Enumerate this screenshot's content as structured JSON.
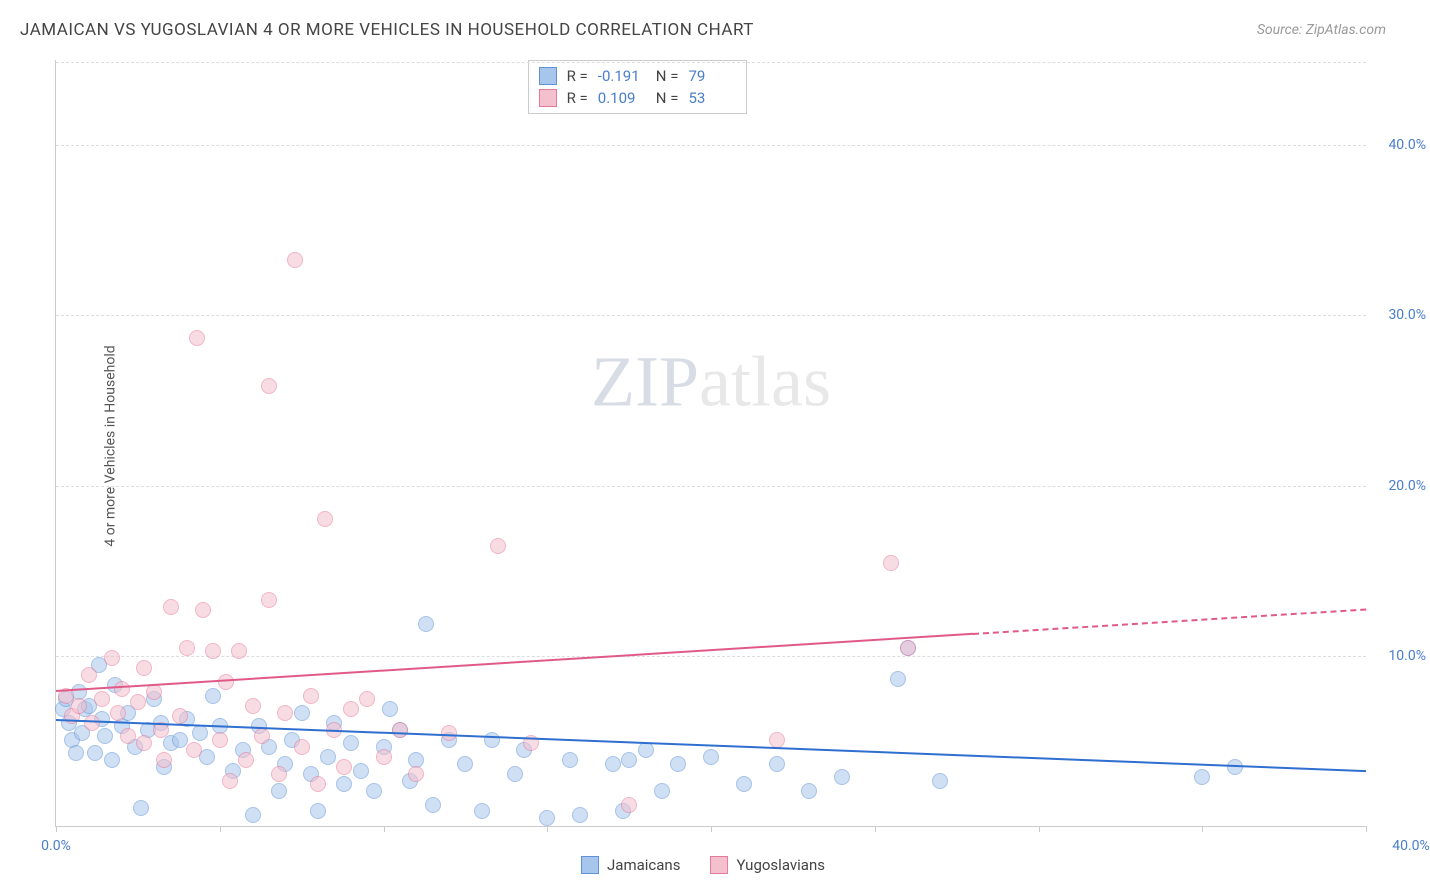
{
  "title": "JAMAICAN VS YUGOSLAVIAN 4 OR MORE VEHICLES IN HOUSEHOLD CORRELATION CHART",
  "source": "Source: ZipAtlas.com",
  "y_axis_label": "4 or more Vehicles in Household",
  "watermark_a": "ZIP",
  "watermark_b": "atlas",
  "chart": {
    "type": "scatter",
    "xlim": [
      0,
      40
    ],
    "ylim": [
      0,
      45
    ],
    "x_ticks": [
      0,
      5,
      10,
      15,
      20,
      25,
      30,
      35,
      40
    ],
    "x_tick_labels": {
      "0": "0.0%",
      "40": "40.0%"
    },
    "y_ticks": [
      10,
      20,
      30,
      40
    ],
    "y_tick_labels": {
      "10": "10.0%",
      "20": "20.0%",
      "30": "30.0%",
      "40": "40.0%"
    },
    "grid_color": "#dddddd",
    "axis_color": "#cccccc",
    "tick_label_color": "#4a7ecc",
    "background_color": "#ffffff",
    "point_radius": 8,
    "point_opacity": 0.55,
    "series": [
      {
        "name": "Jamaicans",
        "color_fill": "#a8c6ec",
        "color_stroke": "#5e93d6",
        "R": "-0.191",
        "N": "79",
        "trend": {
          "x1": 0,
          "y1": 6.3,
          "x2": 40,
          "y2": 3.3,
          "color": "#2f6fd0",
          "dash_after_x": 40
        },
        "points": [
          [
            0.2,
            7.8
          ],
          [
            0.5,
            6.0
          ],
          [
            0.3,
            8.4
          ],
          [
            0.6,
            5.2
          ],
          [
            0.4,
            7.0
          ],
          [
            0.9,
            7.8
          ],
          [
            0.7,
            8.8
          ],
          [
            0.8,
            6.4
          ],
          [
            1.0,
            8.0
          ],
          [
            1.2,
            5.2
          ],
          [
            1.3,
            10.4
          ],
          [
            1.5,
            6.2
          ],
          [
            1.4,
            7.2
          ],
          [
            1.8,
            9.2
          ],
          [
            1.7,
            4.8
          ],
          [
            2.0,
            6.8
          ],
          [
            2.2,
            7.6
          ],
          [
            2.4,
            5.6
          ],
          [
            2.6,
            2.0
          ],
          [
            2.8,
            6.6
          ],
          [
            3.0,
            8.4
          ],
          [
            3.2,
            7.0
          ],
          [
            3.5,
            5.8
          ],
          [
            3.3,
            4.4
          ],
          [
            3.8,
            6.0
          ],
          [
            4.0,
            7.2
          ],
          [
            4.4,
            6.4
          ],
          [
            4.6,
            5.0
          ],
          [
            4.8,
            8.6
          ],
          [
            5.0,
            6.8
          ],
          [
            5.4,
            4.2
          ],
          [
            5.7,
            5.4
          ],
          [
            6.0,
            1.6
          ],
          [
            6.2,
            6.8
          ],
          [
            6.5,
            5.6
          ],
          [
            6.8,
            3.0
          ],
          [
            7.0,
            4.6
          ],
          [
            7.2,
            6.0
          ],
          [
            7.5,
            7.6
          ],
          [
            7.8,
            4.0
          ],
          [
            8.0,
            1.8
          ],
          [
            8.3,
            5.0
          ],
          [
            8.5,
            7.0
          ],
          [
            8.8,
            3.4
          ],
          [
            9.0,
            5.8
          ],
          [
            9.3,
            4.2
          ],
          [
            9.7,
            3.0
          ],
          [
            10.0,
            5.6
          ],
          [
            10.2,
            7.8
          ],
          [
            10.5,
            6.6
          ],
          [
            10.8,
            3.6
          ],
          [
            11.0,
            4.8
          ],
          [
            11.3,
            12.8
          ],
          [
            11.5,
            2.2
          ],
          [
            12.0,
            6.0
          ],
          [
            12.5,
            4.6
          ],
          [
            13.0,
            1.8
          ],
          [
            13.3,
            6.0
          ],
          [
            14.0,
            4.0
          ],
          [
            14.3,
            5.4
          ],
          [
            15.0,
            1.4
          ],
          [
            15.7,
            4.8
          ],
          [
            16.0,
            1.6
          ],
          [
            17.0,
            4.6
          ],
          [
            17.3,
            1.8
          ],
          [
            17.5,
            4.8
          ],
          [
            18.0,
            5.4
          ],
          [
            18.5,
            3.0
          ],
          [
            19.0,
            4.6
          ],
          [
            20.0,
            5.0
          ],
          [
            21.0,
            3.4
          ],
          [
            22.0,
            4.6
          ],
          [
            23.0,
            3.0
          ],
          [
            24.0,
            3.8
          ],
          [
            25.7,
            9.6
          ],
          [
            26.0,
            11.4
          ],
          [
            27.0,
            3.6
          ],
          [
            35.0,
            3.8
          ],
          [
            36.0,
            4.4
          ]
        ]
      },
      {
        "name": "Yugoslavians",
        "color_fill": "#f4c0cd",
        "color_stroke": "#e77a9a",
        "R": "0.109",
        "N": "53",
        "trend": {
          "x1": 0,
          "y1": 8.0,
          "x2": 40,
          "y2": 12.8,
          "color": "#e15a87",
          "dash_after_x": 28
        },
        "points": [
          [
            0.3,
            8.6
          ],
          [
            0.5,
            7.4
          ],
          [
            0.7,
            8.0
          ],
          [
            1.0,
            9.8
          ],
          [
            1.1,
            7.0
          ],
          [
            1.4,
            8.4
          ],
          [
            1.7,
            10.8
          ],
          [
            1.9,
            7.6
          ],
          [
            2.0,
            9.0
          ],
          [
            2.2,
            6.2
          ],
          [
            2.5,
            8.2
          ],
          [
            2.7,
            5.8
          ],
          [
            2.7,
            10.2
          ],
          [
            3.0,
            8.8
          ],
          [
            3.2,
            6.6
          ],
          [
            3.3,
            4.8
          ],
          [
            3.5,
            13.8
          ],
          [
            3.8,
            7.4
          ],
          [
            4.0,
            11.4
          ],
          [
            4.2,
            5.4
          ],
          [
            4.5,
            13.6
          ],
          [
            4.3,
            29.6
          ],
          [
            4.8,
            11.2
          ],
          [
            5.0,
            6.0
          ],
          [
            5.2,
            9.4
          ],
          [
            5.3,
            3.6
          ],
          [
            5.6,
            11.2
          ],
          [
            5.8,
            4.8
          ],
          [
            6.0,
            8.0
          ],
          [
            6.3,
            6.2
          ],
          [
            6.5,
            14.2
          ],
          [
            6.5,
            26.8
          ],
          [
            6.8,
            4.0
          ],
          [
            7.0,
            7.6
          ],
          [
            7.3,
            34.2
          ],
          [
            7.5,
            5.6
          ],
          [
            7.8,
            8.6
          ],
          [
            8.0,
            3.4
          ],
          [
            8.2,
            19.0
          ],
          [
            8.5,
            6.6
          ],
          [
            8.8,
            4.4
          ],
          [
            9.0,
            7.8
          ],
          [
            9.5,
            8.4
          ],
          [
            10.0,
            5.0
          ],
          [
            10.5,
            6.6
          ],
          [
            11.0,
            4.0
          ],
          [
            12.0,
            6.4
          ],
          [
            13.5,
            17.4
          ],
          [
            14.5,
            5.8
          ],
          [
            17.5,
            2.2
          ],
          [
            22.0,
            6.0
          ],
          [
            25.5,
            16.4
          ],
          [
            26.0,
            11.4
          ]
        ]
      }
    ]
  },
  "stats_labels": {
    "R": "R =",
    "N": "N ="
  },
  "legend": [
    {
      "label": "Jamaicans",
      "fill": "#a8c6ec",
      "stroke": "#5e93d6"
    },
    {
      "label": "Yugoslavians",
      "fill": "#f4c0cd",
      "stroke": "#e77a9a"
    }
  ]
}
